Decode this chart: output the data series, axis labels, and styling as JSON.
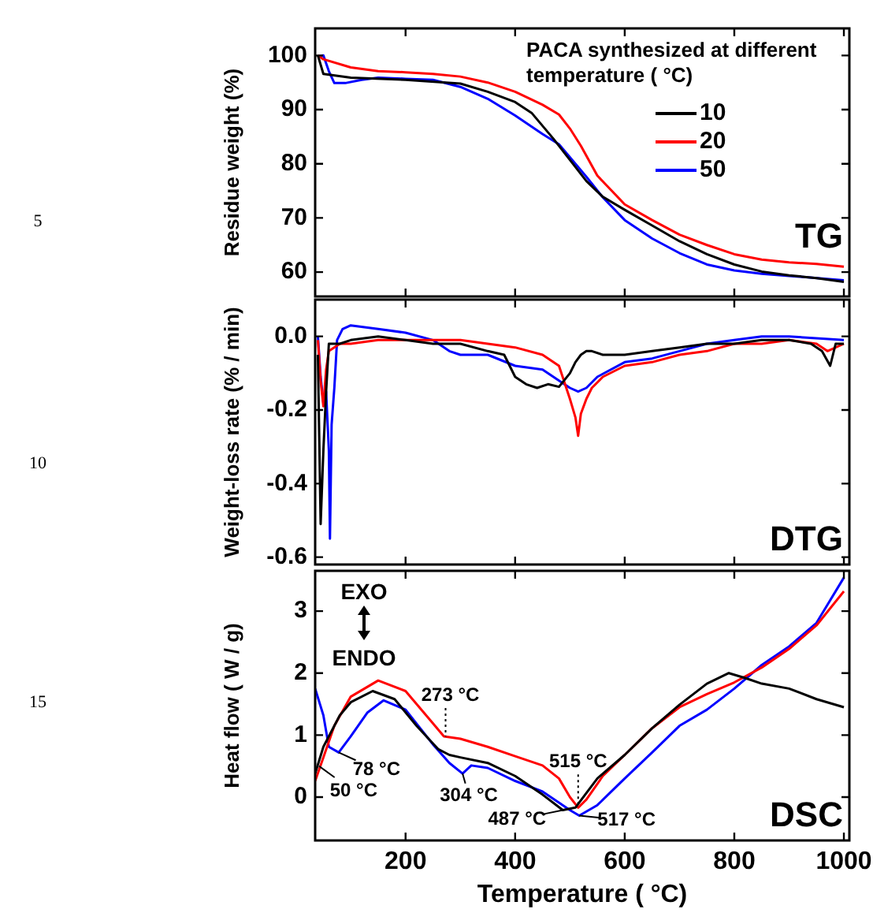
{
  "chart_data": [
    {
      "type": "line",
      "ylabel": "Residue weight (%)",
      "legend_title": "PACA synthesized at different temperature ( °C)",
      "legend": "top right",
      "tick_labels": "y",
      "xlim": [
        35,
        1010
      ],
      "xticks": [
        200,
        400,
        600,
        800,
        1000
      ],
      "ylim": [
        55.5,
        105
      ],
      "yticks": [
        60,
        70,
        80,
        90,
        100
      ],
      "annotations": [
        "TG",
        "5"
      ],
      "series": [
        {
          "name": "10",
          "color": "#000000",
          "x": [
            40,
            50,
            100,
            200,
            300,
            350,
            400,
            430,
            470,
            500,
            530,
            560,
            600,
            650,
            700,
            750,
            800,
            850,
            900,
            950,
            1000
          ],
          "values": [
            100,
            96.6,
            95.9,
            95.5,
            94.8,
            93.3,
            91.4,
            89.4,
            84.6,
            80.7,
            76.8,
            73.9,
            71.5,
            68.6,
            65.7,
            63.3,
            61.4,
            60.1,
            59.4,
            58.9,
            58.2
          ]
        },
        {
          "name": "20",
          "color": "#ff0000",
          "x": [
            40,
            50,
            100,
            150,
            200,
            250,
            300,
            350,
            400,
            450,
            480,
            500,
            520,
            550,
            600,
            650,
            700,
            750,
            800,
            850,
            900,
            950,
            1000
          ],
          "values": [
            100,
            99.3,
            97.8,
            97.1,
            96.9,
            96.6,
            96.1,
            95.0,
            93.3,
            90.9,
            89.1,
            86.5,
            83.3,
            77.8,
            72.5,
            69.6,
            66.9,
            65.0,
            63.3,
            62.3,
            61.8,
            61.5,
            61.0
          ]
        },
        {
          "name": "50",
          "color": "#0000ff",
          "x": [
            40,
            50,
            60,
            70,
            90,
            120,
            150,
            200,
            250,
            300,
            350,
            400,
            450,
            480,
            500,
            530,
            560,
            600,
            650,
            700,
            750,
            800,
            850,
            900,
            1000
          ],
          "values": [
            99.8,
            100,
            97.1,
            94.9,
            94.9,
            95.5,
            95.9,
            95.7,
            95.5,
            94.2,
            92.0,
            88.9,
            85.5,
            83.6,
            81.2,
            77.6,
            73.8,
            69.6,
            66.2,
            63.5,
            61.4,
            60.3,
            59.7,
            59.3,
            58.5
          ]
        }
      ]
    },
    {
      "type": "line",
      "ylabel": "Weight-loss rate (% / min)",
      "tick_labels": "y",
      "xlim": [
        35,
        1010
      ],
      "xticks": [
        200,
        400,
        600,
        800,
        1000
      ],
      "ylim": [
        -0.62,
        0.1
      ],
      "yticks": [
        -0.6,
        -0.4,
        -0.2,
        {
          "value": 0,
          "label": "0.0"
        }
      ],
      "annotations": [
        "DTG",
        "10"
      ],
      "series": [
        {
          "color": "#000000",
          "x": [
            40,
            45,
            50,
            55,
            60,
            80,
            100,
            150,
            200,
            250,
            300,
            350,
            380,
            400,
            420,
            440,
            460,
            480,
            500,
            510,
            520,
            530,
            540,
            560,
            600,
            650,
            700,
            750,
            800,
            850,
            900,
            940,
            960,
            975,
            985,
            1000
          ],
          "values": [
            -0.05,
            -0.51,
            -0.31,
            -0.15,
            -0.02,
            -0.02,
            -0.01,
            0.0,
            -0.01,
            -0.02,
            -0.02,
            -0.04,
            -0.05,
            -0.11,
            -0.13,
            -0.14,
            -0.13,
            -0.137,
            -0.1,
            -0.07,
            -0.05,
            -0.04,
            -0.04,
            -0.05,
            -0.05,
            -0.04,
            -0.03,
            -0.02,
            -0.02,
            -0.01,
            -0.01,
            -0.02,
            -0.04,
            -0.08,
            -0.02,
            -0.02
          ]
        },
        {
          "color": "#ff0000",
          "x": [
            40,
            45,
            50,
            55,
            60,
            80,
            100,
            150,
            200,
            250,
            300,
            350,
            400,
            450,
            480,
            500,
            510,
            515,
            520,
            530,
            540,
            560,
            600,
            650,
            700,
            750,
            800,
            850,
            900,
            950,
            970,
            1000
          ],
          "values": [
            -0.01,
            -0.12,
            -0.19,
            -0.09,
            -0.04,
            -0.02,
            -0.02,
            -0.01,
            -0.01,
            -0.01,
            -0.01,
            -0.02,
            -0.03,
            -0.05,
            -0.08,
            -0.17,
            -0.22,
            -0.27,
            -0.21,
            -0.17,
            -0.14,
            -0.11,
            -0.08,
            -0.07,
            -0.05,
            -0.04,
            -0.02,
            -0.02,
            -0.01,
            -0.02,
            -0.04,
            -0.02
          ]
        },
        {
          "color": "#0000ff",
          "x": [
            40,
            45,
            50,
            55,
            60,
            62,
            65,
            70,
            75,
            85,
            100,
            150,
            200,
            250,
            280,
            300,
            350,
            400,
            450,
            480,
            500,
            515,
            530,
            550,
            600,
            650,
            700,
            750,
            800,
            850,
            900,
            1000
          ],
          "values": [
            0.0,
            -0.11,
            -0.18,
            -0.15,
            -0.31,
            -0.55,
            -0.24,
            -0.14,
            -0.01,
            0.02,
            0.03,
            0.02,
            0.01,
            -0.01,
            -0.04,
            -0.05,
            -0.05,
            -0.08,
            -0.09,
            -0.12,
            -0.14,
            -0.15,
            -0.14,
            -0.11,
            -0.07,
            -0.06,
            -0.04,
            -0.02,
            -0.01,
            0.0,
            0.0,
            -0.01
          ]
        }
      ]
    },
    {
      "type": "line",
      "xlabel": "Temperature ( °C)",
      "ylabel": "Heat flow ( W / g)",
      "xlim": [
        35,
        1010
      ],
      "xticks": [
        200,
        400,
        600,
        800,
        1000
      ],
      "ylim": [
        -0.7,
        3.65
      ],
      "yticks": [
        0,
        1,
        2,
        3
      ],
      "annotations": [
        "DSC",
        "15",
        "EXO",
        "ENDO",
        {
          "text": "273 °C",
          "x": 273,
          "y": 0.98
        },
        {
          "text": "50 °C",
          "x": 42,
          "y": 0.5
        },
        {
          "text": "78 °C",
          "x": 78,
          "y": 0.72
        },
        {
          "text": "304 °C",
          "x": 304,
          "y": 0.38
        },
        {
          "text": "487 °C",
          "x": 487,
          "y": -0.21
        },
        {
          "text": "515 °C",
          "x": 515,
          "y": -0.17
        },
        {
          "text": "517 °C",
          "x": 517,
          "y": -0.3
        }
      ],
      "series": [
        {
          "color": "#000000",
          "x": [
            35,
            50,
            80,
            100,
            140,
            180,
            220,
            260,
            280,
            300,
            350,
            400,
            450,
            487,
            510,
            550,
            600,
            650,
            700,
            750,
            790,
            820,
            850,
            900,
            950,
            1000
          ],
          "values": [
            0.38,
            0.81,
            1.32,
            1.53,
            1.71,
            1.58,
            1.15,
            0.77,
            0.68,
            0.64,
            0.55,
            0.34,
            0.04,
            -0.21,
            -0.17,
            0.3,
            0.68,
            1.11,
            1.49,
            1.83,
            2.0,
            1.92,
            1.83,
            1.75,
            1.58,
            1.45
          ]
        },
        {
          "color": "#ff0000",
          "x": [
            35,
            50,
            70,
            100,
            150,
            200,
            250,
            270,
            300,
            350,
            400,
            450,
            480,
            500,
            515,
            530,
            560,
            600,
            650,
            700,
            750,
            800,
            850,
            900,
            950,
            1000
          ],
          "values": [
            0.26,
            0.64,
            1.15,
            1.62,
            1.88,
            1.71,
            1.19,
            0.98,
            0.94,
            0.81,
            0.66,
            0.51,
            0.3,
            0.0,
            -0.17,
            -0.04,
            0.34,
            0.68,
            1.11,
            1.45,
            1.66,
            1.85,
            2.09,
            2.39,
            2.77,
            3.32
          ]
        },
        {
          "color": "#0000ff",
          "x": [
            35,
            50,
            60,
            78,
            100,
            130,
            160,
            200,
            250,
            280,
            304,
            320,
            350,
            400,
            450,
            500,
            517,
            550,
            600,
            650,
            700,
            750,
            800,
            850,
            900,
            950,
            1000
          ],
          "values": [
            1.75,
            1.32,
            0.81,
            0.72,
            0.98,
            1.36,
            1.56,
            1.41,
            0.85,
            0.55,
            0.38,
            0.51,
            0.47,
            0.26,
            0.09,
            -0.21,
            -0.3,
            -0.13,
            0.3,
            0.72,
            1.15,
            1.41,
            1.75,
            2.13,
            2.43,
            2.81,
            3.54
          ]
        }
      ]
    }
  ]
}
